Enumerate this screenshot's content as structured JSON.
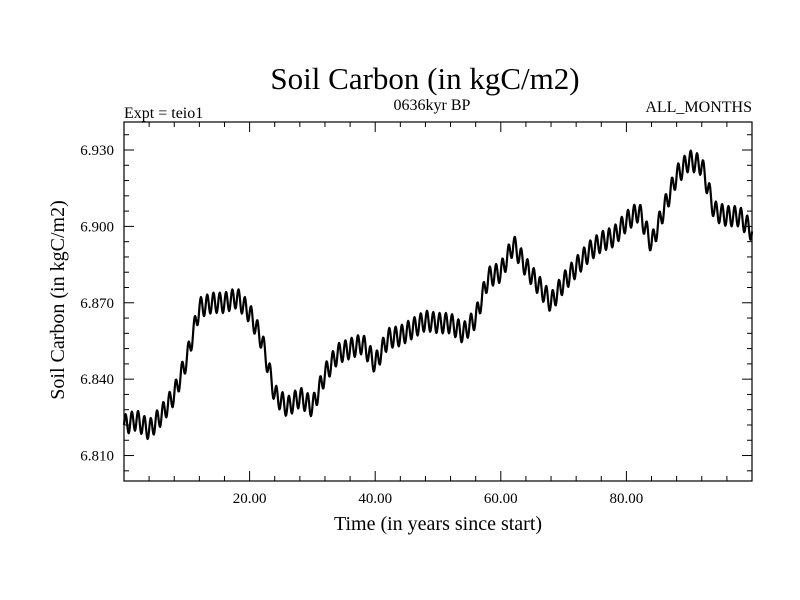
{
  "chart_data": {
    "type": "line",
    "title": "Soil Carbon (in kgC/m2)",
    "subtitle_left": "Expt = teio1",
    "subtitle_center": "0636kyr BP",
    "subtitle_right": "ALL_MONTHS",
    "xlabel": "Time (in years since start)",
    "ylabel": "Soil Carbon (in kgC/m2)",
    "xlim": [
      0,
      100
    ],
    "ylim": [
      6.8,
      6.941
    ],
    "x_ticks": [
      20,
      40,
      60,
      80
    ],
    "x_tick_labels": [
      "20.00",
      "40.00",
      "60.00",
      "80.00"
    ],
    "y_ticks": [
      6.81,
      6.84,
      6.87,
      6.9,
      6.93
    ],
    "y_tick_labels": [
      "6.810",
      "6.840",
      "6.870",
      "6.900",
      "6.930"
    ],
    "grid": false,
    "series": [
      {
        "name": "Soil Carbon",
        "color": "#000000",
        "seasonal_amplitude": 0.004,
        "trend_x": [
          0,
          2,
          4,
          6,
          8,
          10,
          12,
          14,
          16,
          18,
          20,
          22,
          24,
          26,
          28,
          30,
          32,
          34,
          36,
          38,
          40,
          42,
          44,
          46,
          48,
          50,
          52,
          54,
          56,
          58,
          60,
          62,
          64,
          66,
          68,
          70,
          72,
          74,
          76,
          78,
          80,
          82,
          84,
          86,
          88,
          90,
          92,
          94,
          96,
          98,
          100
        ],
        "trend_y": [
          6.822,
          6.824,
          6.82,
          6.826,
          6.834,
          6.848,
          6.868,
          6.87,
          6.87,
          6.872,
          6.866,
          6.855,
          6.834,
          6.829,
          6.833,
          6.829,
          6.842,
          6.85,
          6.852,
          6.854,
          6.846,
          6.856,
          6.857,
          6.86,
          6.863,
          6.862,
          6.862,
          6.858,
          6.864,
          6.88,
          6.882,
          6.893,
          6.884,
          6.877,
          6.87,
          6.878,
          6.884,
          6.89,
          6.894,
          6.896,
          6.902,
          6.906,
          6.893,
          6.907,
          6.92,
          6.926,
          6.924,
          6.906,
          6.904,
          6.904,
          6.898
        ]
      }
    ]
  }
}
